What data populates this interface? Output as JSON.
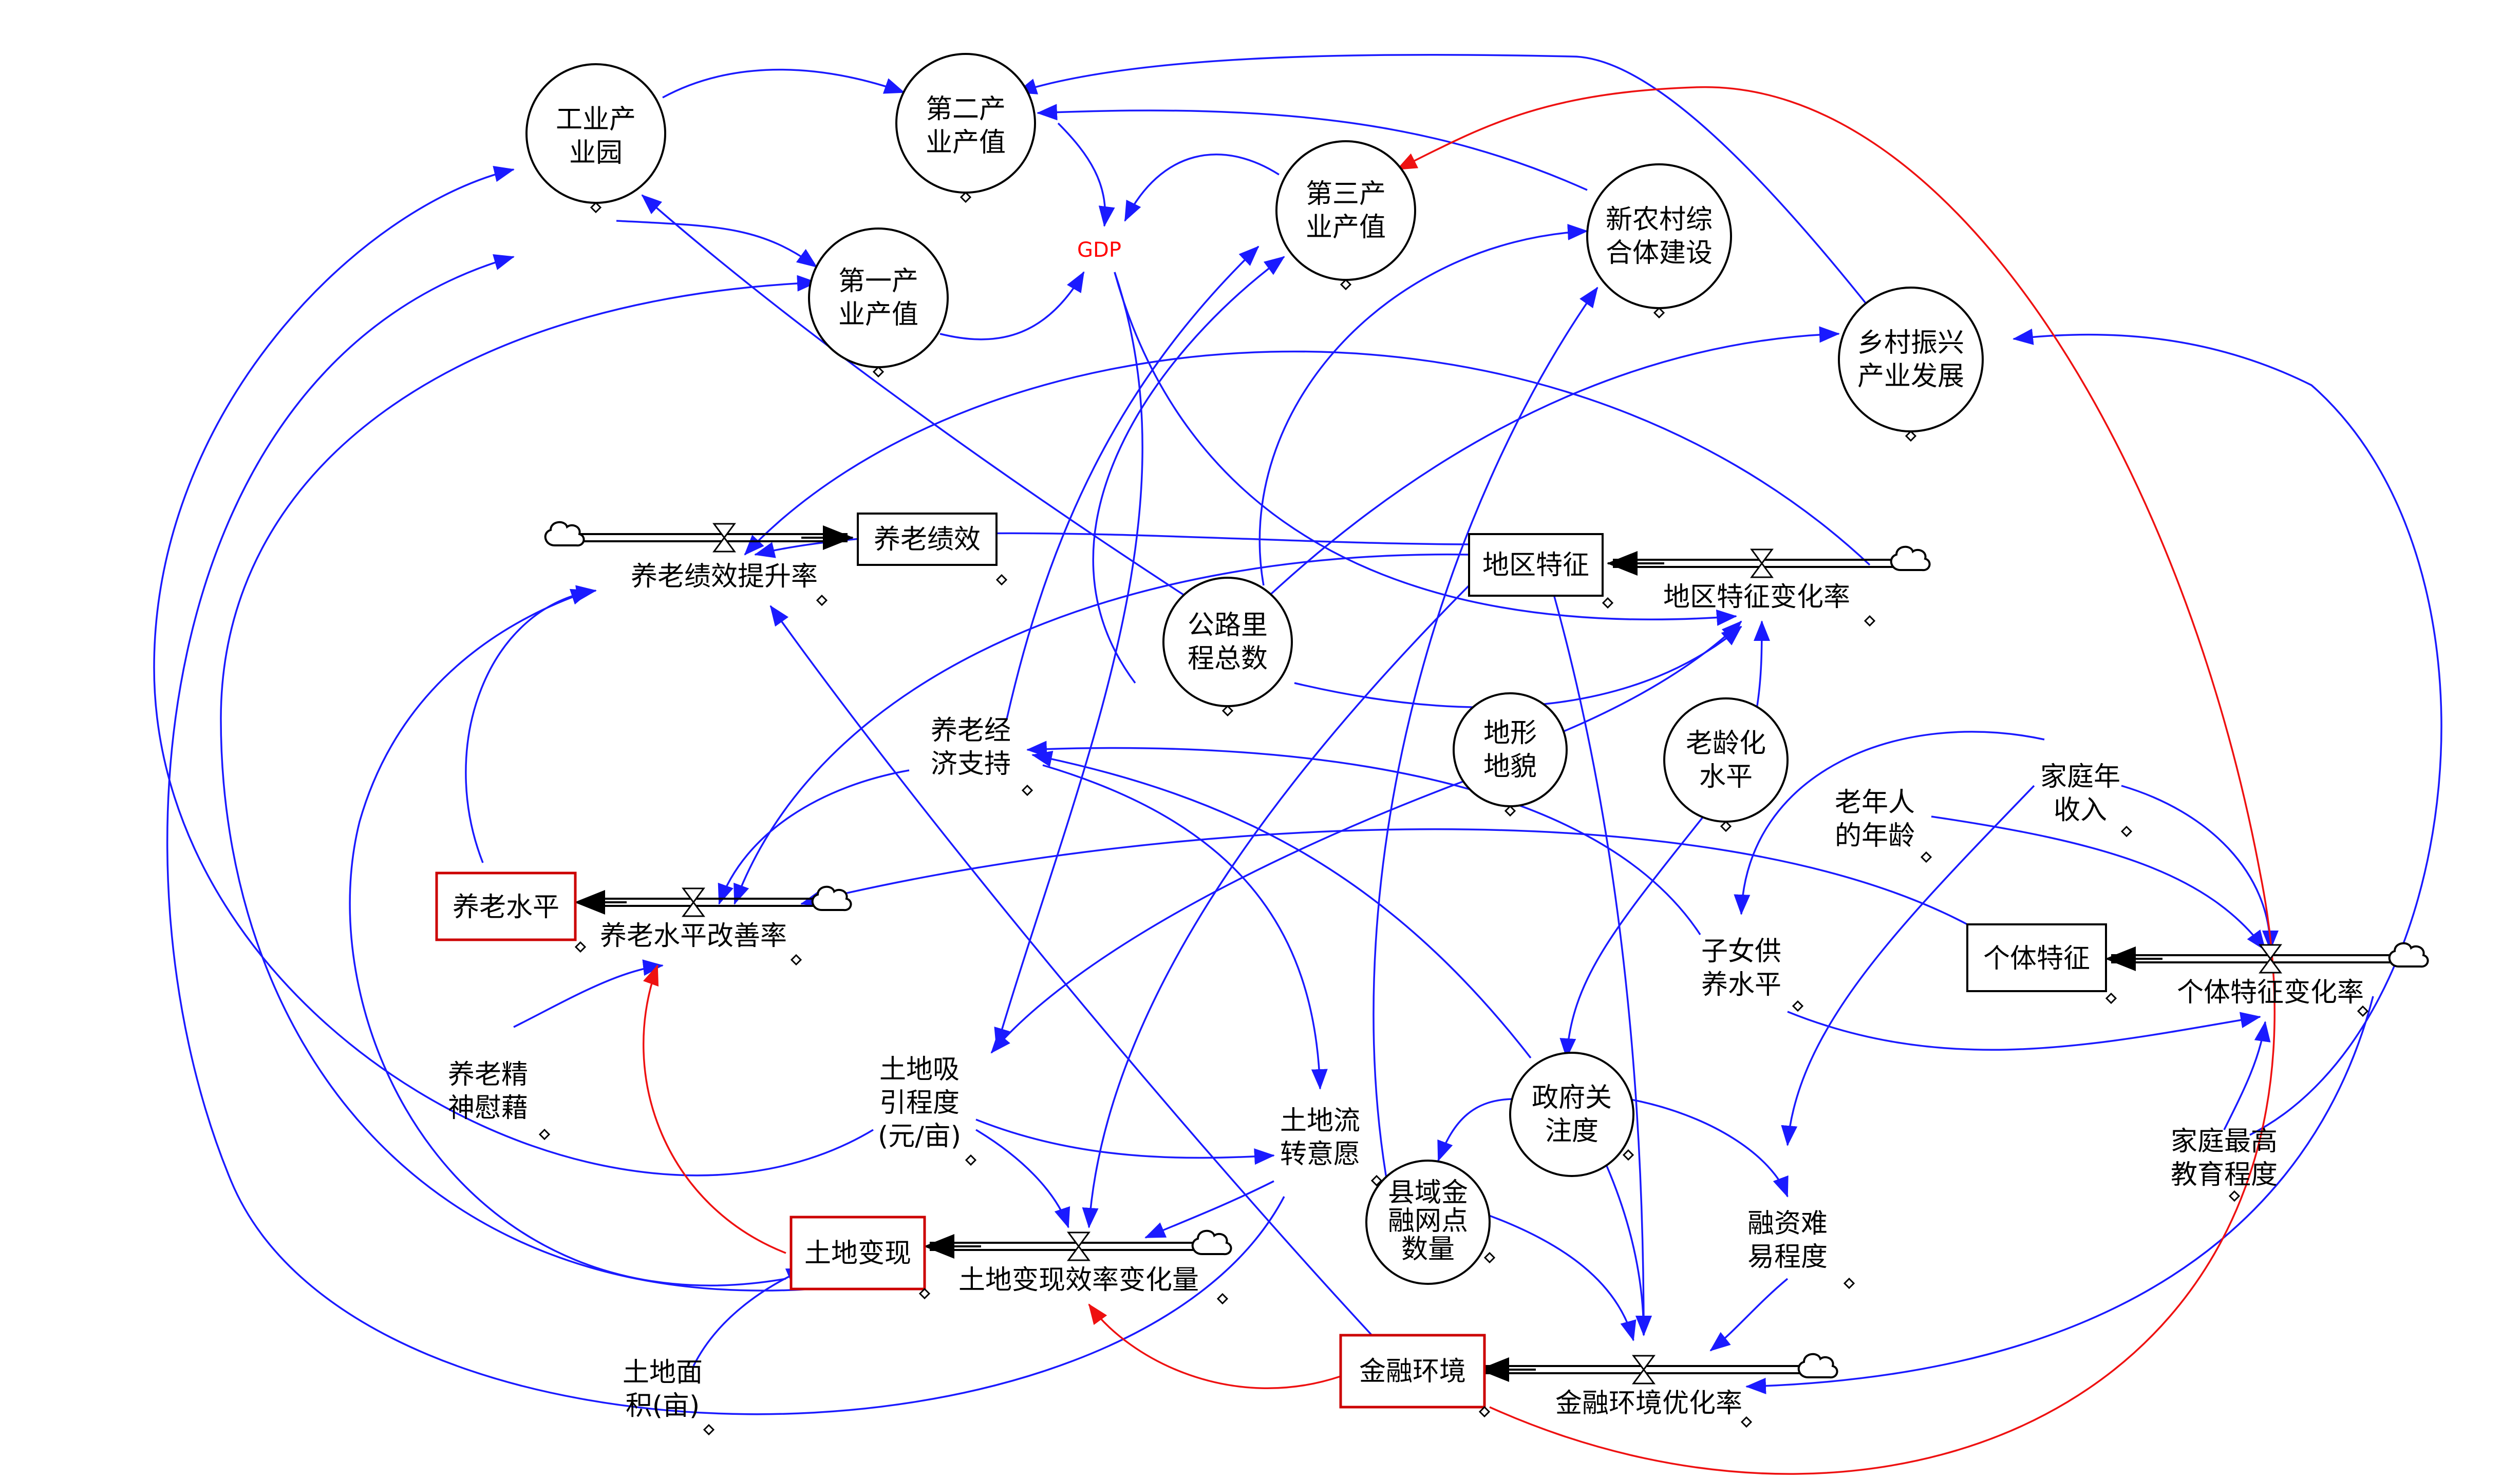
{
  "colors": {
    "link": "#1a1aff",
    "polarity_link": "#ee1111",
    "gdp_text": "#ff0000",
    "highlight_box": "#cc0000"
  },
  "circles": {
    "industrial_park": [
      "工业产",
      "业园"
    ],
    "secondary_output": [
      "第二产",
      "业产值"
    ],
    "tertiary_output": [
      "第三产",
      "业产值"
    ],
    "primary_output": [
      "第一产",
      "业产值"
    ],
    "new_rural": [
      "新农村综",
      "合体建设"
    ],
    "rural_revival": [
      "乡村振兴",
      "产业发展"
    ],
    "highway": [
      "公路里",
      "程总数"
    ],
    "terrain": [
      "地形",
      "地貌"
    ],
    "aging": [
      "老龄化",
      "水平"
    ],
    "gov_attention": [
      "政府关",
      "注度"
    ],
    "county_finance": [
      "县域金",
      "融网点",
      "数量"
    ]
  },
  "gdp": "GDP",
  "stocks": {
    "pension_performance": "养老绩效",
    "regional_features": "地区特征",
    "pension_level": "养老水平",
    "individual_features": "个体特征",
    "land_realization": "土地变现",
    "financial_env": "金融环境"
  },
  "flows": {
    "pension_perf_rate": "养老绩效提升率",
    "regional_change_rate": "地区特征变化率",
    "pension_improve_rate": "养老水平改善率",
    "individual_change_rate": "个体特征变化率",
    "land_efficiency_change": "土地变现效率变化量",
    "finance_optimize_rate": "金融环境优化率"
  },
  "auxiliaries": {
    "pension_econ_support": [
      "养老经",
      "济支持"
    ],
    "elderly_age": [
      "老年人",
      "的年龄"
    ],
    "family_income": [
      "家庭年",
      "收入"
    ],
    "child_support": [
      "子女供",
      "养水平"
    ],
    "pension_spirit": [
      "养老精",
      "神慰藉"
    ],
    "land_attraction": [
      "土地吸",
      "引程度",
      "(元/亩)"
    ],
    "land_transfer": [
      "土地流",
      "转意愿"
    ],
    "financing_difficulty": [
      "融资难",
      "易程度"
    ],
    "family_education": [
      "家庭最高",
      "教育程度"
    ],
    "land_area": [
      "土地面",
      "积(亩)"
    ]
  }
}
